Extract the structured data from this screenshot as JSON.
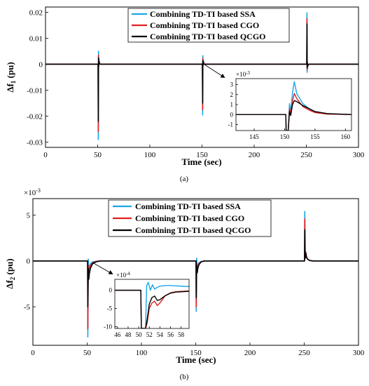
{
  "series_colors": {
    "ssa": "#1aa7e8",
    "cgo": "#e02020",
    "qcgo": "#000000"
  },
  "chart_data": [
    {
      "type": "line",
      "panel_label": "(a)",
      "title": "",
      "xlabel": "Time (sec)",
      "ylabel": "Δf",
      "ylabel_sub": "1",
      "ylabel_unit": " (pu)",
      "xlim": [
        0,
        300
      ],
      "ylim": [
        -0.032,
        0.022
      ],
      "xticks": [
        0,
        50,
        100,
        150,
        200,
        250,
        300
      ],
      "yticks": [
        -0.03,
        -0.02,
        -0.01,
        0,
        0.01,
        0.02
      ],
      "ytick_labels": [
        "-0.03",
        "-0.02",
        "-0.01",
        "0",
        "0.01",
        "0.02"
      ],
      "grid": false,
      "legend_position": "top-center",
      "series": [
        {
          "name": "Combining TD-TI based SSA",
          "color": "#1aa7e8",
          "x": [
            0,
            50.4,
            50.6,
            50.8,
            51.0,
            51.3,
            51.8,
            52.5,
            54,
            150.4,
            150.6,
            150.8,
            151.0,
            151.3,
            151.8,
            152.5,
            154,
            250.4,
            250.6,
            250.8,
            251.0,
            251.3,
            251.8,
            252.5,
            254,
            300
          ],
          "y": [
            0,
            0,
            -0.029,
            0.005,
            -0.001,
            0.002,
            0.0005,
            0,
            0,
            0,
            -0.0195,
            0.0033,
            -0.0007,
            0.0015,
            0.0004,
            0,
            0,
            0,
            0.0198,
            -0.0031,
            0.0008,
            -0.0012,
            -0.0003,
            0,
            0,
            0
          ]
        },
        {
          "name": "Combining TD-TI based CGO",
          "color": "#e02020",
          "x": [
            0,
            50.4,
            50.6,
            50.8,
            51.0,
            51.3,
            51.8,
            52.5,
            54,
            150.4,
            150.6,
            150.8,
            151.0,
            151.3,
            151.8,
            152.5,
            154,
            250.4,
            250.6,
            250.8,
            251.0,
            251.3,
            251.8,
            252.5,
            254,
            300
          ],
          "y": [
            0,
            0,
            -0.026,
            0.0035,
            -0.0006,
            0.0012,
            0.0003,
            0,
            0,
            0,
            -0.0175,
            0.0022,
            -0.0004,
            0.001,
            0.0002,
            0,
            0,
            0,
            0.0175,
            -0.0021,
            0.0005,
            -0.0008,
            -0.0002,
            0,
            0,
            0
          ]
        },
        {
          "name": "Combining TD-TI based QCGO",
          "color": "#000000",
          "x": [
            0,
            50.4,
            50.6,
            50.8,
            51.0,
            51.3,
            51.8,
            52.5,
            54,
            150.4,
            150.6,
            150.8,
            151.0,
            151.3,
            151.8,
            152.5,
            154,
            250.4,
            250.6,
            250.8,
            251.0,
            251.3,
            251.8,
            252.5,
            254,
            300
          ],
          "y": [
            0,
            0,
            -0.022,
            0.0025,
            -0.0004,
            0.0008,
            0.0002,
            0,
            0,
            0,
            -0.015,
            0.0015,
            -0.0003,
            0.0007,
            0.0001,
            0,
            0,
            0,
            0.0155,
            -0.0015,
            0.0003,
            -0.0005,
            -0.0001,
            0,
            0,
            0
          ]
        }
      ],
      "inset": {
        "exponent_label": "×10",
        "exponent_power": "-3",
        "xlim": [
          142,
          161
        ],
        "ylim": [
          -1.6,
          3.6
        ],
        "xticks": [
          145,
          150,
          155,
          160
        ],
        "yticks": [
          -1,
          0,
          1,
          2,
          3
        ],
        "series": [
          {
            "name": "Combining TD-TI based SSA",
            "color": "#1aa7e8",
            "x": [
              142,
              150.2,
              150.25,
              150.6,
              150.8,
              151.0,
              151.3,
              151.6,
              152.0,
              152.5,
              153.0,
              154.0,
              155.0,
              157.0,
              161.0
            ],
            "y": [
              0,
              0,
              -1.6,
              -1.6,
              1.1,
              0.3,
              2.2,
              3.3,
              2.1,
              1.6,
              1.1,
              0.6,
              0.25,
              0.05,
              0
            ]
          },
          {
            "name": "Combining TD-TI based CGO",
            "color": "#e02020",
            "x": [
              142,
              150.2,
              150.25,
              150.6,
              150.8,
              151.0,
              151.3,
              151.6,
              152.0,
              152.5,
              153.0,
              154.0,
              155.0,
              157.0,
              161.0
            ],
            "y": [
              0,
              0,
              -1.6,
              -1.6,
              0.6,
              0.1,
              1.4,
              2.1,
              1.6,
              1.2,
              0.8,
              0.45,
              0.2,
              0.05,
              0
            ]
          },
          {
            "name": "Combining TD-TI based QCGO",
            "color": "#000000",
            "x": [
              142,
              150.2,
              150.25,
              150.6,
              150.8,
              151.0,
              151.3,
              151.6,
              152.0,
              152.5,
              153.0,
              154.0,
              155.0,
              157.0,
              161.0
            ],
            "y": [
              0,
              0,
              -1.6,
              -1.6,
              0.3,
              -0.1,
              1.0,
              1.4,
              1.3,
              1.1,
              0.9,
              0.6,
              0.3,
              0.1,
              0
            ]
          }
        ]
      }
    },
    {
      "type": "line",
      "panel_label": "(b)",
      "title": "",
      "xlabel": "Time (sec)",
      "ylabel": "Δf",
      "ylabel_sub": "2",
      "ylabel_unit": " (pu)",
      "exponent_label": "×10",
      "exponent_power": "-3",
      "xlim": [
        0,
        300
      ],
      "ylim": [
        -9.2,
        6.8
      ],
      "xticks": [
        0,
        50,
        100,
        150,
        200,
        250,
        300
      ],
      "yticks": [
        -5,
        0,
        5
      ],
      "ytick_labels": [
        "-5",
        "0",
        "5"
      ],
      "grid": false,
      "legend_position": "top-center",
      "series": [
        {
          "name": "Combining TD-TI based SSA",
          "color": "#1aa7e8",
          "x": [
            0,
            50.4,
            50.6,
            51.0,
            51.5,
            52.0,
            53.0,
            55.0,
            58.0,
            62.0,
            150.3,
            150.5,
            150.9,
            151.4,
            152.0,
            153.0,
            155.0,
            158.0,
            250.3,
            250.5,
            250.9,
            251.5,
            252.0,
            253.0,
            255.0,
            258.0,
            300
          ],
          "y": [
            0,
            0,
            -8.3,
            0.2,
            -1.0,
            -0.6,
            -0.3,
            -0.1,
            -0.05,
            0,
            0,
            -5.5,
            0.3,
            -0.8,
            -0.4,
            -0.2,
            -0.05,
            0,
            0,
            5.4,
            0.5,
            1.0,
            0.5,
            0.2,
            0.05,
            0,
            0
          ]
        },
        {
          "name": "Combining TD-TI based CGO",
          "color": "#e02020",
          "x": [
            0,
            50.4,
            50.6,
            51.0,
            51.5,
            52.0,
            53.0,
            55.0,
            58.0,
            62.0,
            150.3,
            150.5,
            150.9,
            151.4,
            152.0,
            153.0,
            155.0,
            158.0,
            250.3,
            250.5,
            250.9,
            251.5,
            252.0,
            253.0,
            255.0,
            258.0,
            300
          ],
          "y": [
            0,
            0,
            -7.4,
            -0.5,
            -1.6,
            -1.0,
            -0.5,
            -0.2,
            -0.05,
            0,
            0,
            -5.0,
            -0.3,
            -1.1,
            -0.6,
            -0.3,
            -0.1,
            0,
            0,
            4.6,
            0.4,
            0.9,
            0.5,
            0.2,
            0.05,
            0,
            0
          ]
        },
        {
          "name": "Combining TD-TI based QCGO",
          "color": "#000000",
          "x": [
            0,
            50.4,
            50.6,
            51.0,
            51.5,
            52.0,
            53.0,
            55.0,
            58.0,
            62.0,
            150.3,
            150.5,
            150.9,
            151.4,
            152.0,
            153.0,
            155.0,
            158.0,
            250.3,
            250.5,
            250.9,
            251.5,
            252.0,
            253.0,
            255.0,
            258.0,
            300
          ],
          "y": [
            0,
            0,
            -5.0,
            -0.8,
            -2.0,
            -1.4,
            -0.8,
            -0.3,
            -0.1,
            0,
            0,
            -4.0,
            -0.5,
            -1.3,
            -0.8,
            -0.4,
            -0.1,
            0,
            0,
            3.4,
            0.3,
            0.8,
            0.4,
            0.2,
            0.05,
            0,
            0
          ]
        }
      ],
      "inset": {
        "exponent_label": "×10",
        "exponent_power": "-4",
        "xlim": [
          45.5,
          59.5
        ],
        "ylim": [
          -10.5,
          3.0
        ],
        "xticks": [
          46,
          48,
          50,
          52,
          54,
          56,
          58
        ],
        "yticks": [
          -10,
          -5,
          0
        ],
        "series": [
          {
            "name": "Combining TD-TI based SSA",
            "color": "#1aa7e8",
            "x": [
              45.5,
              50.4,
              50.5,
              51.3,
              51.5,
              51.8,
              52.2,
              52.6,
              53.0,
              53.5,
              54.0,
              55.0,
              56.0,
              57.0,
              59.5
            ],
            "y": [
              0,
              0,
              -10.5,
              -10.5,
              1.2,
              2.2,
              0.0,
              1.5,
              0.3,
              0.8,
              1.1,
              1.3,
              1.3,
              1.2,
              1.0
            ]
          },
          {
            "name": "Combining TD-TI based CGO",
            "color": "#e02020",
            "x": [
              45.5,
              50.4,
              50.5,
              51.3,
              51.6,
              52.0,
              52.5,
              53.0,
              53.5,
              54.0,
              55.0,
              56.0,
              57.0,
              59.5
            ],
            "y": [
              0,
              0,
              -10.5,
              -10.5,
              -9.0,
              -5.0,
              -3.5,
              -3.0,
              -4.2,
              -3.5,
              -1.5,
              -0.7,
              -0.4,
              -0.2
            ]
          },
          {
            "name": "Combining TD-TI based QCGO",
            "color": "#000000",
            "x": [
              45.5,
              50.4,
              50.5,
              51.3,
              51.6,
              52.0,
              52.5,
              53.0,
              53.5,
              54.0,
              55.0,
              56.0,
              57.0,
              59.5
            ],
            "y": [
              0,
              0,
              -10.5,
              -10.5,
              -8.0,
              -3.8,
              -2.0,
              -1.6,
              -2.8,
              -2.6,
              -1.5,
              -0.8,
              -0.5,
              -0.3
            ]
          }
        ]
      }
    }
  ]
}
